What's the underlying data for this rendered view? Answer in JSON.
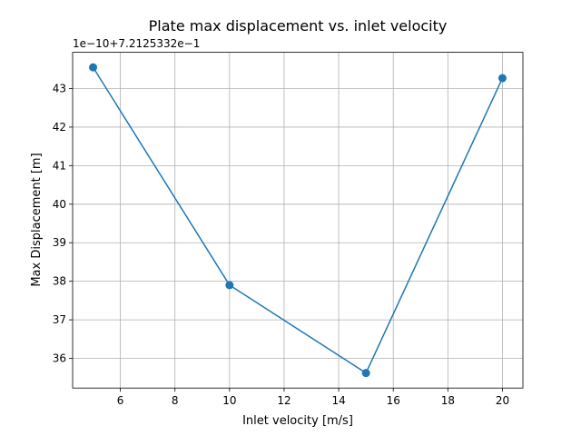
{
  "chart_data": {
    "type": "line",
    "title": "Plate max displacement vs. inlet velocity",
    "xlabel": "Inlet velocity [m/s]",
    "ylabel": "Max Displacement [m]",
    "offset_text": "1e−10+7.2125332e−1",
    "xlim": [
      4.25,
      20.75
    ],
    "ylim": [
      35.23,
      43.94
    ],
    "xticks": [
      6,
      8,
      10,
      12,
      14,
      16,
      18,
      20
    ],
    "yticks": [
      36,
      37,
      38,
      39,
      40,
      41,
      42,
      43
    ],
    "grid": true,
    "series": [
      {
        "x": [
          5,
          10,
          15,
          20
        ],
        "y": [
          43.55,
          37.9,
          35.62,
          43.27
        ],
        "color": "#1f77b4",
        "marker": "circle"
      }
    ]
  }
}
